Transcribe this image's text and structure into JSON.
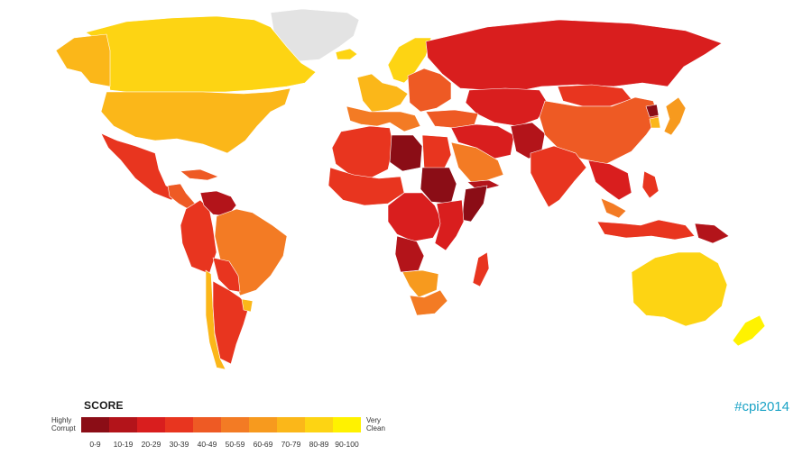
{
  "legend": {
    "title": "SCORE",
    "low_label_line1": "Highly",
    "low_label_line2": "Corrupt",
    "high_label_line1": "Very",
    "high_label_line2": "Clean",
    "bins": [
      {
        "range": "0-9",
        "color": "#8b0d16"
      },
      {
        "range": "10-19",
        "color": "#b3141a"
      },
      {
        "range": "20-29",
        "color": "#d91e1e"
      },
      {
        "range": "30-39",
        "color": "#e8351f"
      },
      {
        "range": "40-49",
        "color": "#ee5a24"
      },
      {
        "range": "50-59",
        "color": "#f37b24"
      },
      {
        "range": "60-69",
        "color": "#f79a1e"
      },
      {
        "range": "70-79",
        "color": "#fbb719"
      },
      {
        "range": "80-89",
        "color": "#fdd413"
      },
      {
        "range": "90-100",
        "color": "#fff200"
      }
    ]
  },
  "hashtag": "#cpi2014",
  "no_data_color": "#e3e3e3",
  "regions": [
    {
      "name": "Greenland",
      "color": "#e3e3e3"
    },
    {
      "name": "Canada",
      "color": "#fdd413"
    },
    {
      "name": "Alaska",
      "color": "#fbb719"
    },
    {
      "name": "United States",
      "color": "#fbb719"
    },
    {
      "name": "Mexico",
      "color": "#e8351f"
    },
    {
      "name": "Central America",
      "color": "#ee5a24"
    },
    {
      "name": "Cuba and Caribbean",
      "color": "#ee5a24"
    },
    {
      "name": "Colombia and Peru",
      "color": "#e8351f"
    },
    {
      "name": "Venezuela",
      "color": "#b3141a"
    },
    {
      "name": "Brazil",
      "color": "#f37b24"
    },
    {
      "name": "Bolivia and Paraguay",
      "color": "#e8351f"
    },
    {
      "name": "Chile",
      "color": "#fbb719"
    },
    {
      "name": "Argentina",
      "color": "#e8351f"
    },
    {
      "name": "Uruguay",
      "color": "#fbb719"
    },
    {
      "name": "Iceland",
      "color": "#fdd413"
    },
    {
      "name": "Scandinavia",
      "color": "#fdd413"
    },
    {
      "name": "Western Europe",
      "color": "#fbb719"
    },
    {
      "name": "Southern Europe",
      "color": "#f37b24"
    },
    {
      "name": "Eastern Europe",
      "color": "#ee5a24"
    },
    {
      "name": "Russia",
      "color": "#d91e1e"
    },
    {
      "name": "Kazakhstan and Central Asia",
      "color": "#d91e1e"
    },
    {
      "name": "Turkey and Caucasus",
      "color": "#ee5a24"
    },
    {
      "name": "Iran and Middle East",
      "color": "#d91e1e"
    },
    {
      "name": "Saudi Arabia and Gulf",
      "color": "#f37b24"
    },
    {
      "name": "Yemen",
      "color": "#b3141a"
    },
    {
      "name": "Afghanistan and Pakistan",
      "color": "#b3141a"
    },
    {
      "name": "Mongolia",
      "color": "#e8351f"
    },
    {
      "name": "China",
      "color": "#ee5a24"
    },
    {
      "name": "North Korea",
      "color": "#8b0d16"
    },
    {
      "name": "Japan",
      "color": "#fbb719"
    },
    {
      "name": "South Korea",
      "color": "#f79a1e"
    },
    {
      "name": "India",
      "color": "#e8351f"
    },
    {
      "name": "Southeast Asia",
      "color": "#d91e1e"
    },
    {
      "name": "Malaysia",
      "color": "#f37b24"
    },
    {
      "name": "Indonesia",
      "color": "#e8351f"
    },
    {
      "name": "Philippines",
      "color": "#e8351f"
    },
    {
      "name": "Papua New Guinea",
      "color": "#b3141a"
    },
    {
      "name": "Australia",
      "color": "#fdd413"
    },
    {
      "name": "New Zealand",
      "color": "#fff200"
    },
    {
      "name": "North Africa",
      "color": "#e8351f"
    },
    {
      "name": "Libya",
      "color": "#8b0d16"
    },
    {
      "name": "Egypt",
      "color": "#e8351f"
    },
    {
      "name": "West Africa",
      "color": "#e8351f"
    },
    {
      "name": "Sudan",
      "color": "#8b0d16"
    },
    {
      "name": "Central Africa",
      "color": "#d91e1e"
    },
    {
      "name": "Somalia",
      "color": "#8b0d16"
    },
    {
      "name": "East Africa",
      "color": "#d91e1e"
    },
    {
      "name": "Angola",
      "color": "#b3141a"
    },
    {
      "name": "Namibia and Botswana",
      "color": "#f79a1e"
    },
    {
      "name": "South Africa",
      "color": "#f37b24"
    },
    {
      "name": "Madagascar",
      "color": "#e8351f"
    }
  ]
}
